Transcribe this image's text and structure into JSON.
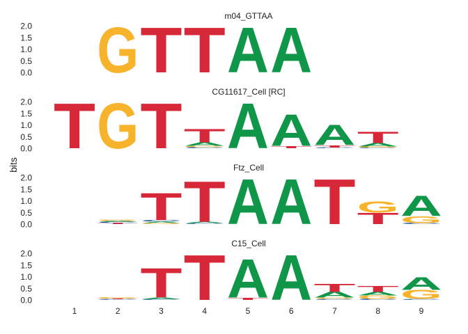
{
  "chart_data": {
    "type": "sequence-logo",
    "ylabel": "bits",
    "x_ticks": [
      "1",
      "2",
      "3",
      "4",
      "5",
      "6",
      "7",
      "8",
      "9"
    ],
    "y_ticks": [
      "0.0",
      "0.5",
      "1.0",
      "1.5",
      "2.0"
    ],
    "ylim": [
      0,
      2.0
    ],
    "colors": {
      "A": "#109648",
      "C": "#255C99",
      "G": "#F7B32B",
      "T": "#D62839"
    },
    "panels": [
      {
        "title": "m04_GTTAA",
        "positions": [
          {
            "pos": 1,
            "letters": []
          },
          {
            "pos": 2,
            "letters": [
              {
                "b": "G",
                "h": 2.0
              }
            ]
          },
          {
            "pos": 3,
            "letters": [
              {
                "b": "T",
                "h": 2.0
              }
            ]
          },
          {
            "pos": 4,
            "letters": [
              {
                "b": "T",
                "h": 2.0
              }
            ]
          },
          {
            "pos": 5,
            "letters": [
              {
                "b": "A",
                "h": 2.0
              }
            ]
          },
          {
            "pos": 6,
            "letters": [
              {
                "b": "A",
                "h": 2.0
              }
            ]
          },
          {
            "pos": 7,
            "letters": []
          },
          {
            "pos": 8,
            "letters": []
          },
          {
            "pos": 9,
            "letters": []
          }
        ]
      },
      {
        "title": "CG11617_Cell [RC]",
        "positions": [
          {
            "pos": 1,
            "letters": [
              {
                "b": "T",
                "h": 2.0
              }
            ]
          },
          {
            "pos": 2,
            "letters": [
              {
                "b": "G",
                "h": 2.0
              }
            ]
          },
          {
            "pos": 3,
            "letters": [
              {
                "b": "T",
                "h": 2.0
              }
            ]
          },
          {
            "pos": 4,
            "letters": [
              {
                "b": "C",
                "h": 0.05
              },
              {
                "b": "G",
                "h": 0.05
              },
              {
                "b": "A",
                "h": 0.15
              },
              {
                "b": "T",
                "h": 0.6
              }
            ]
          },
          {
            "pos": 5,
            "letters": [
              {
                "b": "A",
                "h": 2.0
              }
            ]
          },
          {
            "pos": 6,
            "letters": [
              {
                "b": "T",
                "h": 0.1
              },
              {
                "b": "A",
                "h": 1.4
              }
            ]
          },
          {
            "pos": 7,
            "letters": [
              {
                "b": "C",
                "h": 0.03
              },
              {
                "b": "T",
                "h": 0.1
              },
              {
                "b": "A",
                "h": 0.9
              }
            ]
          },
          {
            "pos": 8,
            "letters": [
              {
                "b": "C",
                "h": 0.03
              },
              {
                "b": "G",
                "h": 0.05
              },
              {
                "b": "A",
                "h": 0.15
              },
              {
                "b": "T",
                "h": 0.5
              }
            ]
          },
          {
            "pos": 9,
            "letters": []
          }
        ]
      },
      {
        "title": "Ftz_Cell",
        "positions": [
          {
            "pos": 1,
            "letters": []
          },
          {
            "pos": 2,
            "letters": [
              {
                "b": "T",
                "h": 0.05
              },
              {
                "b": "C",
                "h": 0.05
              },
              {
                "b": "A",
                "h": 0.04
              },
              {
                "b": "G",
                "h": 0.06
              }
            ]
          },
          {
            "pos": 3,
            "letters": [
              {
                "b": "G",
                "h": 0.04
              },
              {
                "b": "A",
                "h": 0.06
              },
              {
                "b": "C",
                "h": 0.08
              },
              {
                "b": "T",
                "h": 1.2
              }
            ]
          },
          {
            "pos": 4,
            "letters": [
              {
                "b": "C",
                "h": 0.04
              },
              {
                "b": "A",
                "h": 0.06
              },
              {
                "b": "T",
                "h": 1.8
              }
            ]
          },
          {
            "pos": 5,
            "letters": [
              {
                "b": "A",
                "h": 2.0
              }
            ]
          },
          {
            "pos": 6,
            "letters": [
              {
                "b": "A",
                "h": 2.0
              }
            ]
          },
          {
            "pos": 7,
            "letters": [
              {
                "b": "T",
                "h": 2.0
              }
            ]
          },
          {
            "pos": 8,
            "letters": [
              {
                "b": "T",
                "h": 0.5
              },
              {
                "b": "G",
                "h": 0.5
              }
            ]
          },
          {
            "pos": 9,
            "letters": [
              {
                "b": "C",
                "h": 0.05
              },
              {
                "b": "G",
                "h": 0.3
              },
              {
                "b": "A",
                "h": 0.9
              }
            ]
          }
        ]
      },
      {
        "title": "C15_Cell",
        "positions": [
          {
            "pos": 1,
            "letters": []
          },
          {
            "pos": 2,
            "letters": [
              {
                "b": "C",
                "h": 0.03
              },
              {
                "b": "T",
                "h": 0.03
              },
              {
                "b": "G",
                "h": 0.06
              }
            ]
          },
          {
            "pos": 3,
            "letters": [
              {
                "b": "C",
                "h": 0.03
              },
              {
                "b": "A",
                "h": 0.07
              },
              {
                "b": "T",
                "h": 1.3
              }
            ]
          },
          {
            "pos": 4,
            "letters": [
              {
                "b": "T",
                "h": 2.0
              }
            ]
          },
          {
            "pos": 5,
            "letters": [
              {
                "b": "T",
                "h": 0.1
              },
              {
                "b": "A",
                "h": 1.7
              }
            ]
          },
          {
            "pos": 6,
            "letters": [
              {
                "b": "A",
                "h": 2.0
              }
            ]
          },
          {
            "pos": 7,
            "letters": [
              {
                "b": "C",
                "h": 0.04
              },
              {
                "b": "G",
                "h": 0.06
              },
              {
                "b": "A",
                "h": 0.25
              },
              {
                "b": "T",
                "h": 0.35
              }
            ]
          },
          {
            "pos": 8,
            "letters": [
              {
                "b": "C",
                "h": 0.05
              },
              {
                "b": "G",
                "h": 0.15
              },
              {
                "b": "A",
                "h": 0.15
              },
              {
                "b": "T",
                "h": 0.25
              }
            ]
          },
          {
            "pos": 9,
            "letters": [
              {
                "b": "C",
                "h": 0.04
              },
              {
                "b": "G",
                "h": 0.4
              },
              {
                "b": "A",
                "h": 0.55
              }
            ]
          }
        ]
      }
    ]
  }
}
